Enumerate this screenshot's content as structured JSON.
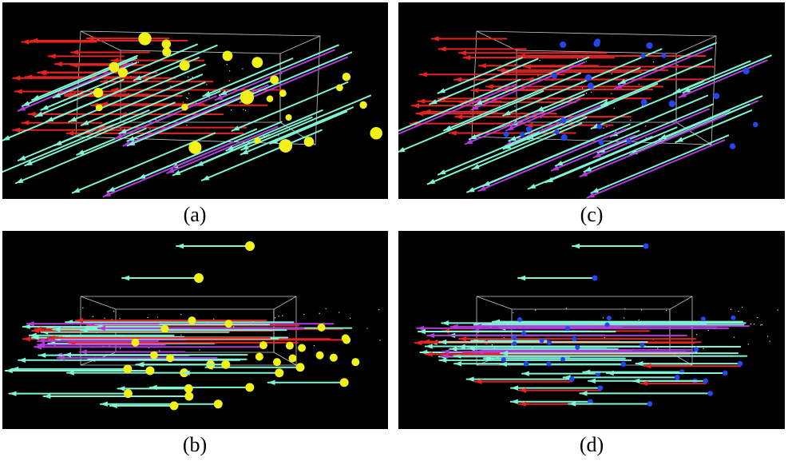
{
  "captions": {
    "a": "(a)",
    "b": "(b)",
    "c": "(c)",
    "d": "(d)"
  },
  "colors": {
    "background": "#000000",
    "arrow_red": "#e8221f",
    "arrow_cyan": "#7ff5d6",
    "arrow_magenta": "#b33bdc",
    "sphere_yellow": "#f2f219",
    "sphere_blue": "#2446ee",
    "box_line": "#c8c8c8"
  },
  "panels": [
    {
      "id": "a",
      "sphere": "yellow",
      "view": "oblique"
    },
    {
      "id": "c",
      "sphere": "blue",
      "view": "oblique"
    },
    {
      "id": "b",
      "sphere": "yellow",
      "view": "front"
    },
    {
      "id": "d",
      "sphere": "blue",
      "view": "front"
    }
  ]
}
